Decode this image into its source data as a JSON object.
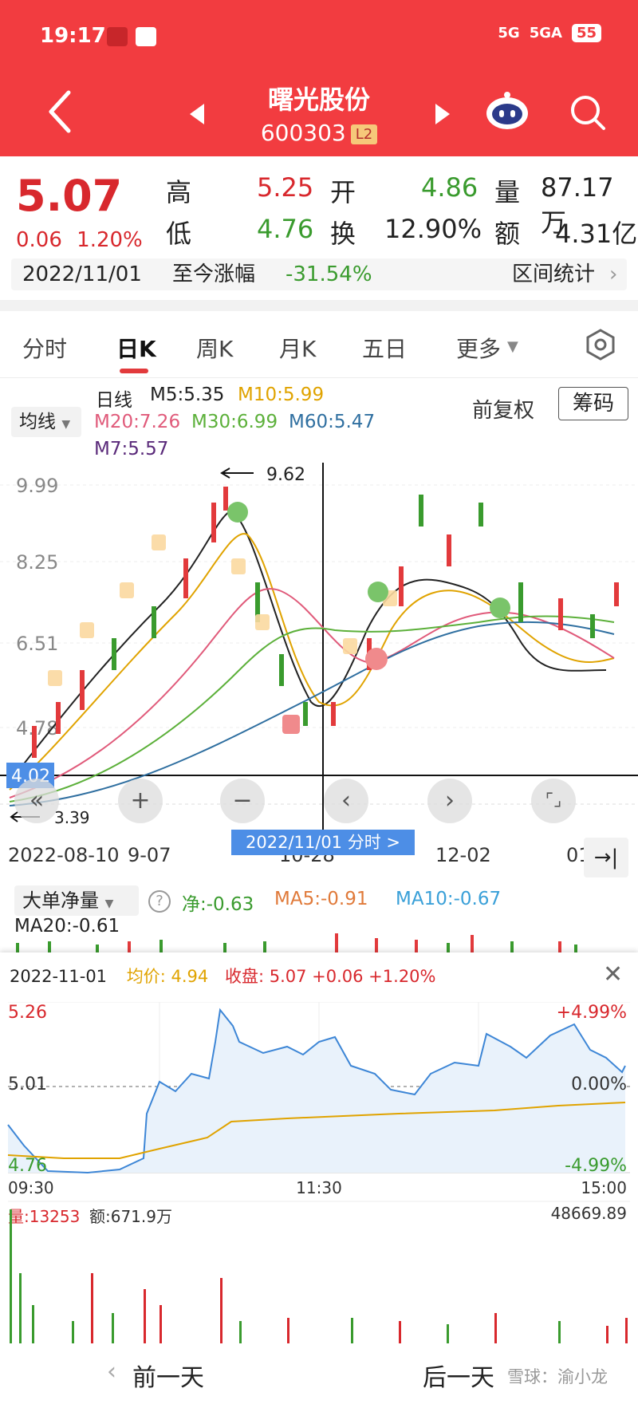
{
  "status": {
    "time": "19:17",
    "net1": "5G",
    "net2": "5GA",
    "battery": "55"
  },
  "header": {
    "title": "曙光股份",
    "code": "600303",
    "badge": "L2"
  },
  "quote": {
    "price": "5.07",
    "change": "0.06",
    "change_pct": "1.20%",
    "high_label": "高",
    "high": "5.25",
    "low_label": "低",
    "low": "4.76",
    "open_label": "开",
    "open": "4.86",
    "turnover_label": "换",
    "turnover": "12.90%",
    "volume_label": "量",
    "volume": "87.17万",
    "amount_label": "额",
    "amount": "4.31亿",
    "date": "2022/11/01",
    "since_label": "至今涨幅",
    "since_value": "-31.54%",
    "range_stats": "区间统计"
  },
  "tabs": [
    {
      "label": "分时"
    },
    {
      "label": "日K"
    },
    {
      "label": "周K"
    },
    {
      "label": "月K"
    },
    {
      "label": "五日"
    },
    {
      "label": "更多"
    }
  ],
  "ma_panel": {
    "junxian": "均线",
    "rixian": "日线",
    "m5": "M5:5.35",
    "m10": "M10:5.99",
    "m20": "M20:7.26",
    "m30": "M30:6.99",
    "m60": "M60:5.47",
    "m7": "M7:5.57",
    "fuquan": "前复权",
    "chouma": "筹码"
  },
  "kline": {
    "y_labels": [
      "9.99",
      "8.25",
      "6.51",
      "4.78"
    ],
    "max_label": "9.62",
    "min_label": "3.39",
    "cursor_price": "4.02",
    "x_labels": [
      "2022-08-10",
      "9-07",
      "10-28",
      "12-02",
      "01"
    ],
    "cursor_date": "2022/11/01  分时 >",
    "controls": [
      "«",
      "+",
      "−",
      "‹",
      "›",
      "⌜⌟"
    ],
    "colors": {
      "m5": "#222222",
      "m10": "#e0a300",
      "m20": "#e05a7a",
      "m30": "#5cb03a",
      "m60": "#2f6fa0"
    }
  },
  "bigorder": {
    "label": "大单净量",
    "help": "?",
    "net": "净:-0.63",
    "ma5": "MA5:-0.91",
    "ma10": "MA10:-0.67",
    "ma20": "MA20:-0.61"
  },
  "intraday": {
    "date": "2022-11-01",
    "avg_label": "均价:",
    "avg": "4.94",
    "close_label": "收盘:",
    "close": "5.07 +0.06 +1.20%",
    "y_top": "5.26",
    "y_mid": "5.01",
    "y_bot": "4.76",
    "pct_top": "+4.99%",
    "pct_mid": "0.00%",
    "pct_bot": "-4.99%",
    "times": [
      "09:30",
      "11:30",
      "15:00"
    ],
    "vol_label": "量:13253",
    "amt_label": "额:671.9万",
    "vol_max": "48669.89",
    "close_btn": "✕"
  },
  "bottom": {
    "prev": "前一天",
    "next": "后一天",
    "watermark": "雪球：渝小龙"
  }
}
